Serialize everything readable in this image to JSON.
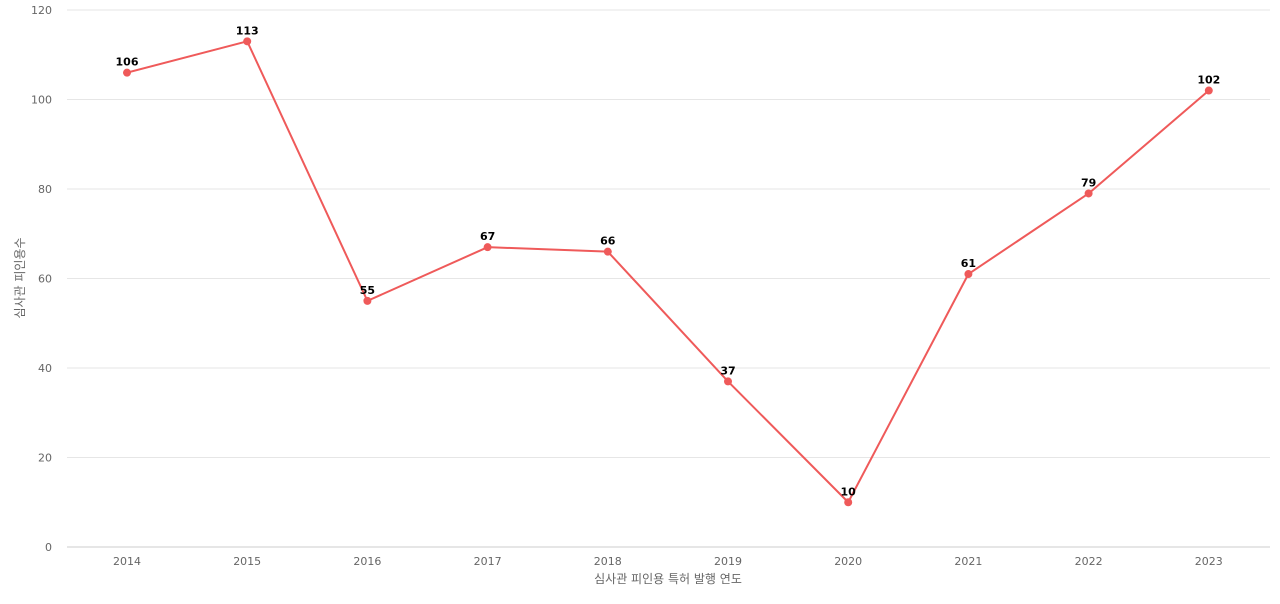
{
  "chart_data": {
    "type": "line",
    "title": "",
    "xlabel": "심사관 피인용 특허 발행 연도",
    "ylabel": "심사관 피인용수",
    "categories": [
      "2014",
      "2015",
      "2016",
      "2017",
      "2018",
      "2019",
      "2020",
      "2021",
      "2022",
      "2023"
    ],
    "series": [
      {
        "values": [
          106,
          113,
          55,
          67,
          66,
          37,
          10,
          61,
          79,
          102
        ],
        "color": "#ef5a5a"
      }
    ],
    "ylim": [
      0,
      120
    ],
    "yticks": [
      "0",
      "20",
      "40",
      "60",
      "80",
      "100",
      "120"
    ],
    "grid": true,
    "data_labels": true,
    "legend": "none"
  }
}
